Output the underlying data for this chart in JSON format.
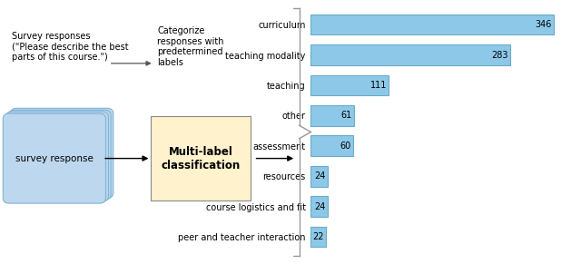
{
  "categories": [
    "curriculum",
    "teaching modality",
    "teaching",
    "other",
    "assessment",
    "resources",
    "course logistics and fit",
    "peer and teacher interaction"
  ],
  "values": [
    346,
    283,
    111,
    61,
    60,
    24,
    24,
    22
  ],
  "bar_color": "#8DC8E8",
  "bar_edge_color": "#6AAAC8",
  "bar_label_fontsize": 7.0,
  "cat_label_fontsize": 7.0,
  "left_text_survey": "Survey responses\n(\"Please describe the best\nparts of this course.\")",
  "left_text_categorize": "Categorize\nresponses with\npredetermined\nlabels",
  "left_box_text": "Multi-label\nclassification",
  "left_box_facecolor": "#FFF2CC",
  "left_box_edgecolor": "#888888",
  "survey_box_facecolor": "#BDD7EE",
  "survey_box_edgecolor": "#7EB4D4",
  "background_color": "#ffffff",
  "xlim_bar": 380,
  "bar_height": 0.68,
  "bracket_color": "#999999"
}
